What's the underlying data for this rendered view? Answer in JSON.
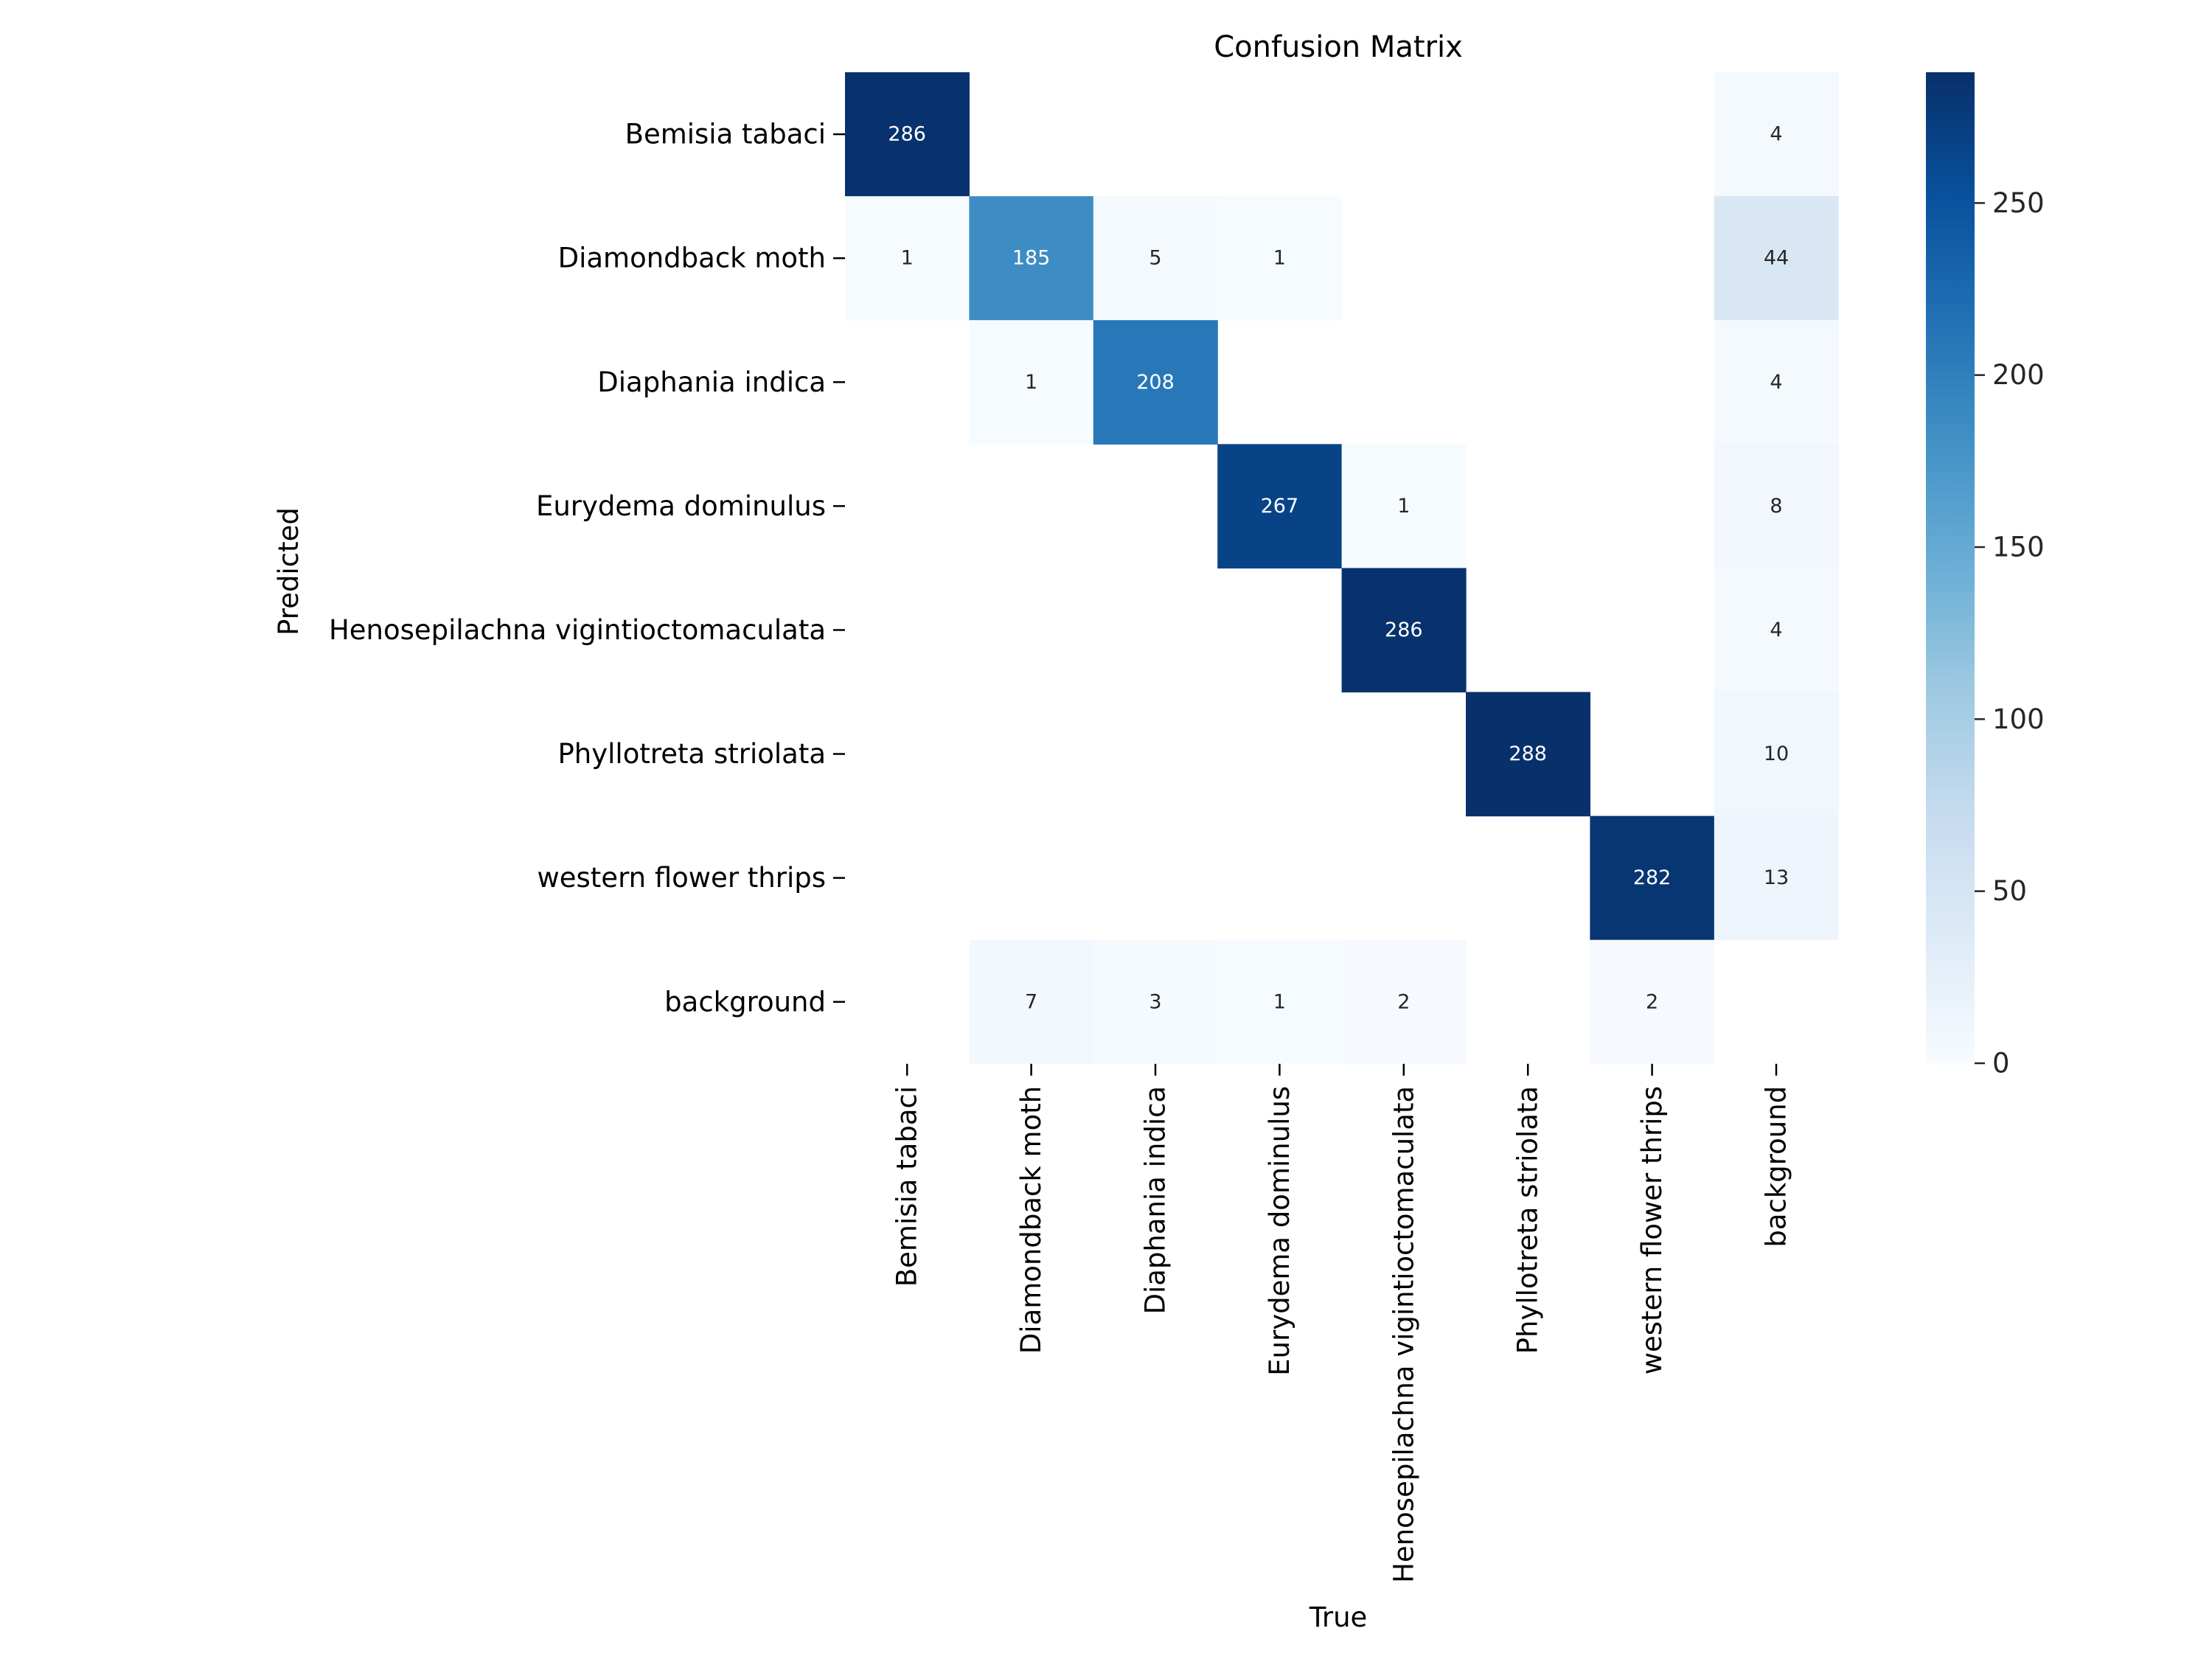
{
  "chart_data": {
    "type": "heatmap",
    "title": "Confusion Matrix",
    "xlabel": "True",
    "ylabel": "Predicted",
    "row_labels": [
      "Bemisia tabaci",
      "Diamondback moth",
      "Diaphania indica",
      "Eurydema dominulus",
      "Henosepilachna vigintioctomaculata",
      "Phyllotreta striolata",
      "western flower thrips",
      "background"
    ],
    "col_labels": [
      "Bemisia tabaci",
      "Diamondback moth",
      "Diaphania indica",
      "Eurydema dominulus",
      "Henosepilachna vigintioctomaculata",
      "Phyllotreta striolata",
      "western flower thrips",
      "background"
    ],
    "values": [
      [
        286,
        null,
        null,
        null,
        null,
        null,
        null,
        4
      ],
      [
        1,
        185,
        5,
        1,
        null,
        null,
        null,
        44
      ],
      [
        null,
        1,
        208,
        null,
        null,
        null,
        null,
        4
      ],
      [
        null,
        null,
        null,
        267,
        1,
        null,
        null,
        8
      ],
      [
        null,
        null,
        null,
        null,
        286,
        null,
        null,
        4
      ],
      [
        null,
        null,
        null,
        null,
        null,
        288,
        null,
        10
      ],
      [
        null,
        null,
        null,
        null,
        null,
        null,
        282,
        13
      ],
      [
        null,
        7,
        3,
        1,
        2,
        null,
        2,
        null
      ]
    ],
    "colormap": "Blues",
    "color_range": [
      0,
      288
    ],
    "colorbar": {
      "ticks": [
        0,
        50,
        100,
        150,
        200,
        250
      ],
      "tick_labels": [
        "0",
        "50",
        "100",
        "150",
        "200",
        "250"
      ]
    },
    "grid": false,
    "legend": "none"
  }
}
